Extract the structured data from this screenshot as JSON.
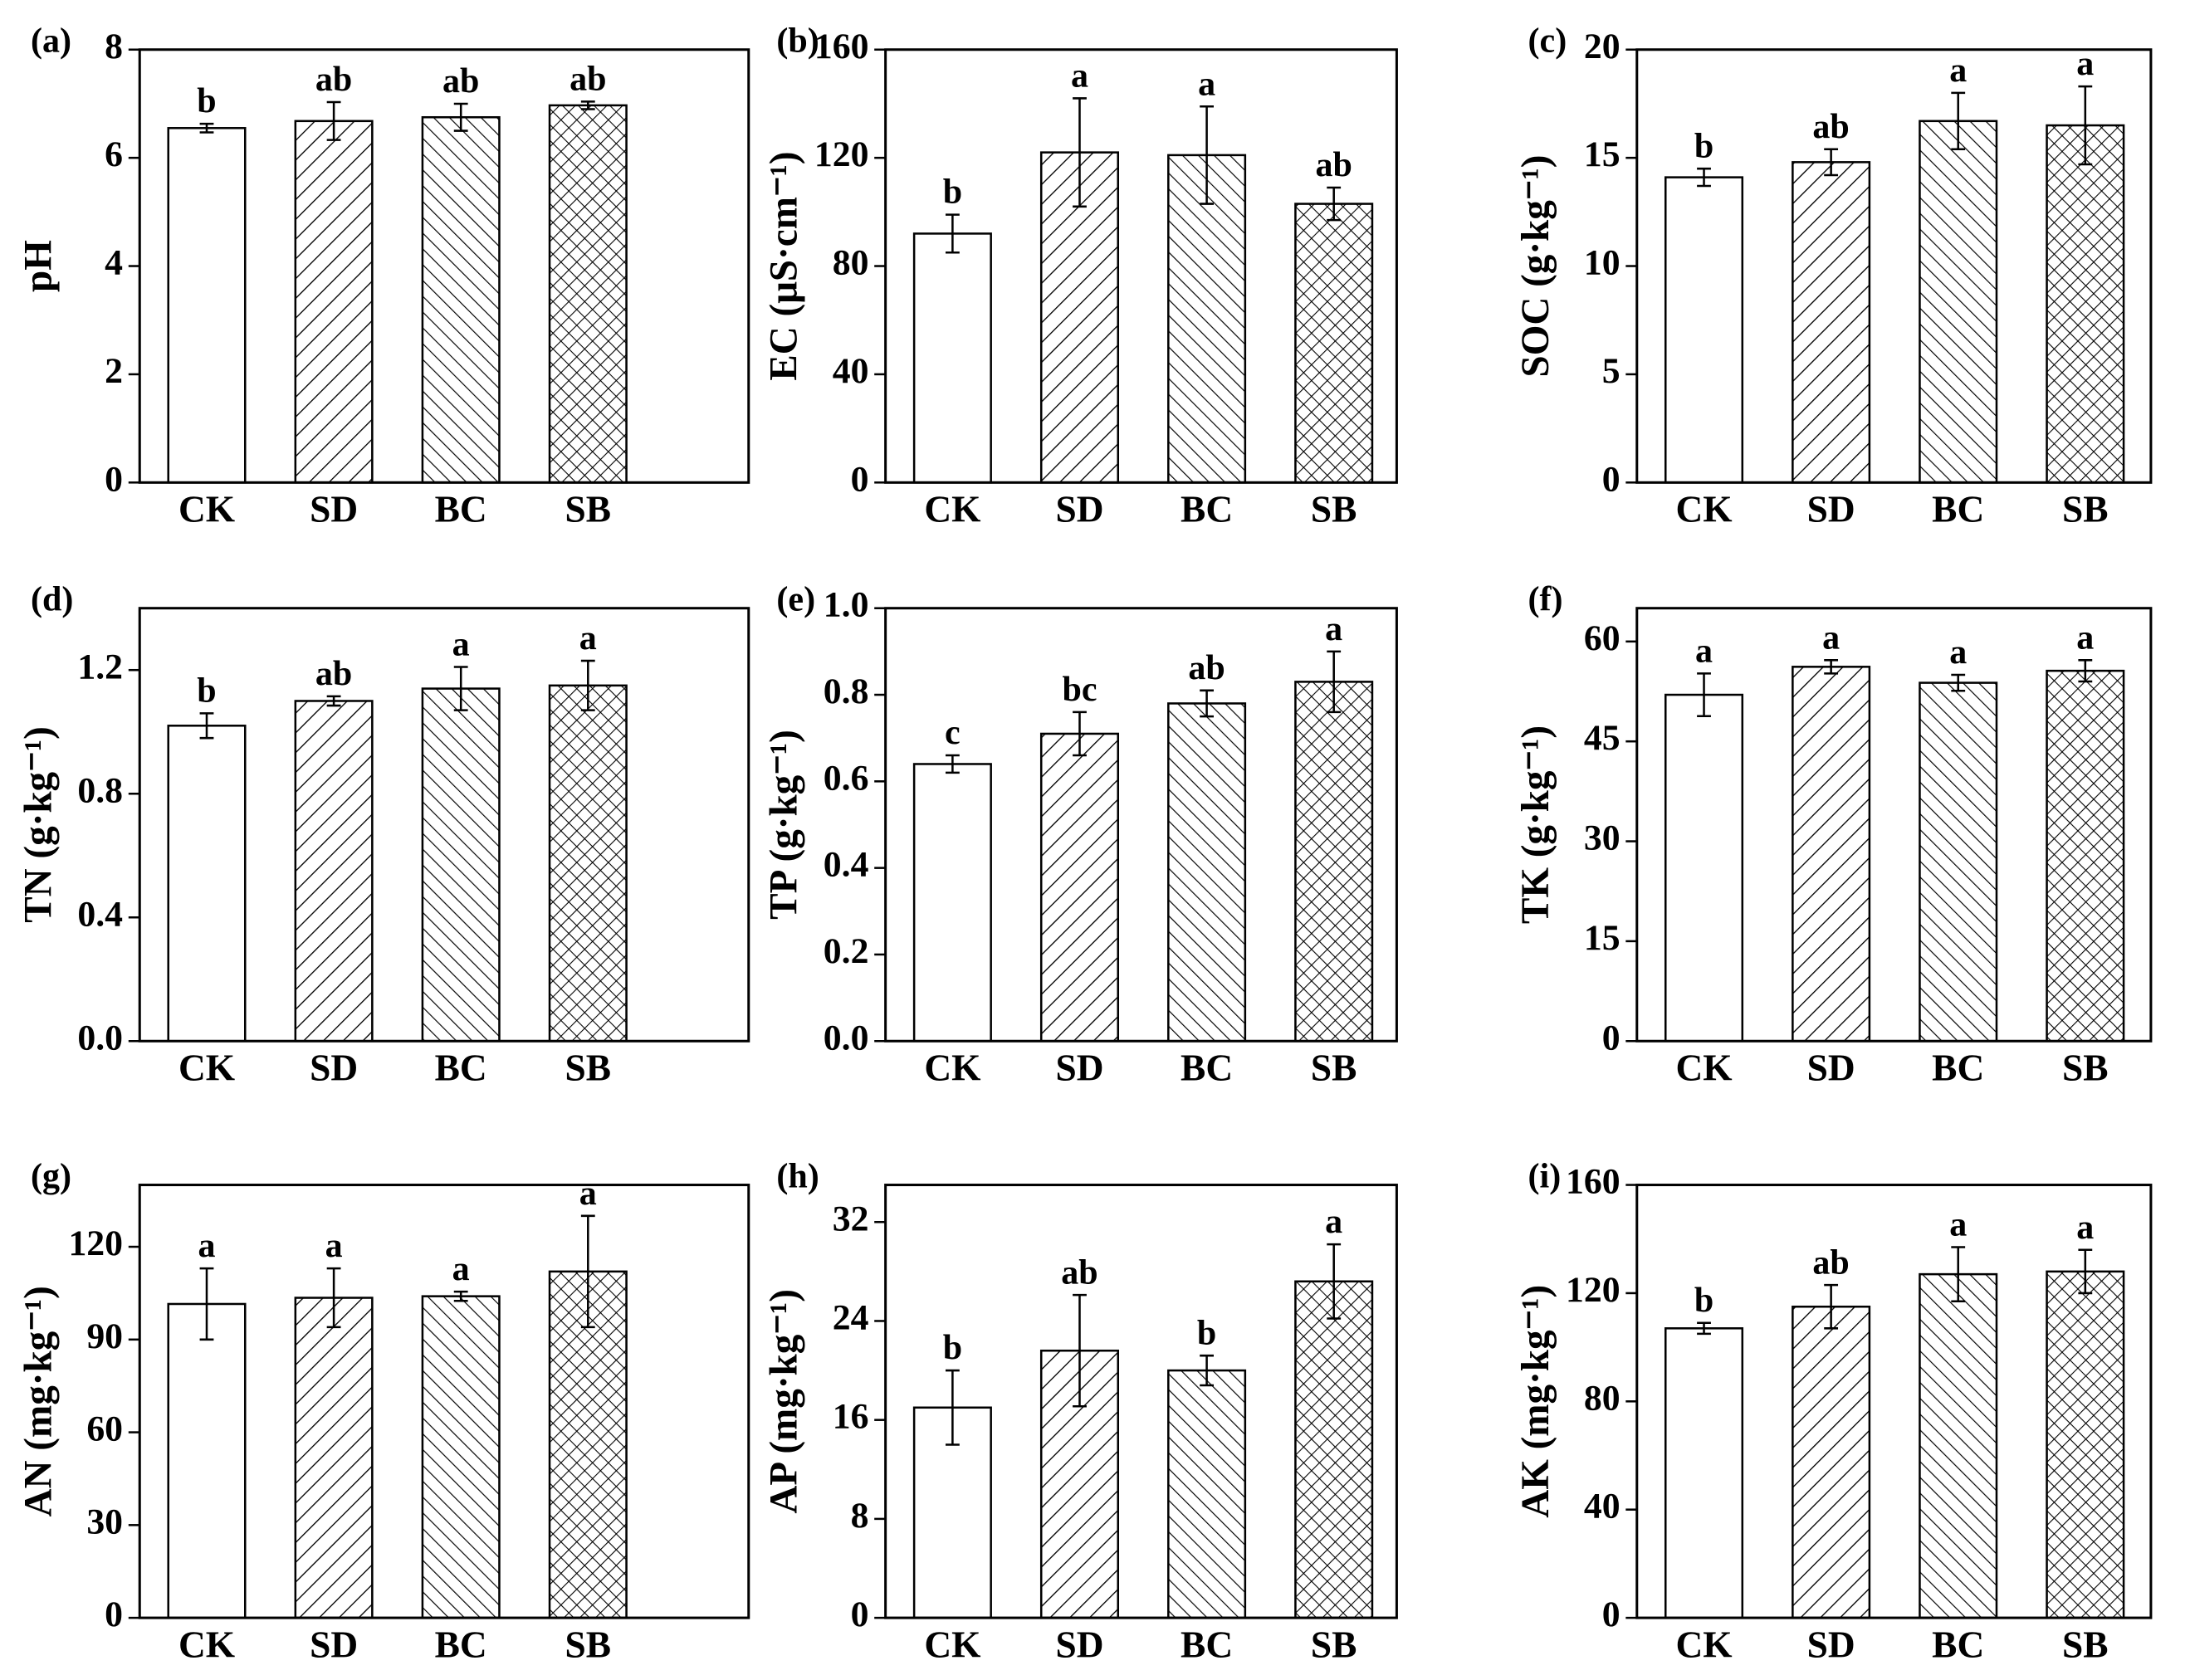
{
  "chart_data": [
    {
      "type": "bar",
      "panel_label": "(a)",
      "ylabel": "pH",
      "categories": [
        "CK",
        "SD",
        "BC",
        "SB"
      ],
      "values": [
        6.55,
        6.68,
        6.75,
        6.97
      ],
      "errors": [
        0.08,
        0.35,
        0.25,
        0.07
      ],
      "letters": [
        "b",
        "ab",
        "ab",
        "ab"
      ],
      "hatches": [
        "none",
        "/",
        "\\",
        "x"
      ],
      "color": "#000000",
      "ylim": [
        0,
        8
      ],
      "yticks": [
        0,
        2,
        4,
        6,
        8
      ]
    },
    {
      "type": "bar",
      "panel_label": "(b)",
      "ylabel": "EC (μS·cm⁻¹)",
      "categories": [
        "CK",
        "SD",
        "BC",
        "SB"
      ],
      "values": [
        92,
        122,
        121,
        103
      ],
      "errors": [
        7,
        20,
        18,
        6
      ],
      "letters": [
        "b",
        "a",
        "a",
        "ab"
      ],
      "hatches": [
        "none",
        "/",
        "\\",
        "x"
      ],
      "color": "#000000",
      "ylim": [
        0,
        160
      ],
      "yticks": [
        0,
        40,
        80,
        120,
        160
      ]
    },
    {
      "type": "bar",
      "panel_label": "(c)",
      "ylabel": "SOC (g·kg⁻¹)",
      "categories": [
        "CK",
        "SD",
        "BC",
        "SB"
      ],
      "values": [
        14.1,
        14.8,
        16.7,
        16.5
      ],
      "errors": [
        0.4,
        0.6,
        1.3,
        1.8
      ],
      "letters": [
        "b",
        "ab",
        "a",
        "a"
      ],
      "hatches": [
        "none",
        "/",
        "\\",
        "x"
      ],
      "color": "#000000",
      "ylim": [
        0,
        20
      ],
      "yticks": [
        0,
        5,
        10,
        15,
        20
      ]
    },
    {
      "type": "bar",
      "panel_label": "(d)",
      "ylabel": "TN (g·kg⁻¹)",
      "categories": [
        "CK",
        "SD",
        "BC",
        "SB"
      ],
      "values": [
        1.02,
        1.1,
        1.14,
        1.15
      ],
      "errors": [
        0.04,
        0.015,
        0.07,
        0.08
      ],
      "letters": [
        "b",
        "ab",
        "a",
        "a"
      ],
      "hatches": [
        "none",
        "/",
        "\\",
        "x"
      ],
      "color": "#000000",
      "ylim": [
        0,
        1.4
      ],
      "yticks": [
        {
          "value": 0,
          "label": "0.0"
        },
        0.4,
        0.8,
        1.2
      ]
    },
    {
      "type": "bar",
      "panel_label": "(e)",
      "ylabel": "TP (g·kg⁻¹)",
      "categories": [
        "CK",
        "SD",
        "BC",
        "SB"
      ],
      "values": [
        0.64,
        0.71,
        0.78,
        0.83
      ],
      "errors": [
        0.02,
        0.05,
        0.03,
        0.07
      ],
      "letters": [
        "c",
        "bc",
        "ab",
        "a"
      ],
      "hatches": [
        "none",
        "/",
        "\\",
        "x"
      ],
      "color": "#000000",
      "ylim": [
        0,
        1.0
      ],
      "yticks": [
        {
          "value": 0,
          "label": "0.0"
        },
        0.2,
        0.4,
        0.6,
        0.8,
        {
          "value": 1,
          "label": "1.0"
        }
      ]
    },
    {
      "type": "bar",
      "panel_label": "(f)",
      "ylabel": "TK (g·kg⁻¹)",
      "categories": [
        "CK",
        "SD",
        "BC",
        "SB"
      ],
      "values": [
        52,
        56.2,
        53.8,
        55.6
      ],
      "errors": [
        3.2,
        1.0,
        1.2,
        1.6
      ],
      "letters": [
        "a",
        "a",
        "a",
        "a"
      ],
      "hatches": [
        "none",
        "/",
        "\\",
        "x"
      ],
      "color": "#000000",
      "ylim": [
        0,
        65
      ],
      "yticks": [
        0,
        15,
        30,
        45,
        60
      ]
    },
    {
      "type": "bar",
      "panel_label": "(g)",
      "ylabel": "AN (mg·kg⁻¹)",
      "categories": [
        "CK",
        "SD",
        "BC",
        "SB"
      ],
      "values": [
        101.5,
        103.5,
        104,
        112
      ],
      "errors": [
        11.5,
        9.5,
        1.5,
        18
      ],
      "letters": [
        "a",
        "a",
        "a",
        "a"
      ],
      "hatches": [
        "none",
        "/",
        "\\",
        "x"
      ],
      "color": "#000000",
      "ylim": [
        0,
        140
      ],
      "yticks": [
        0,
        30,
        60,
        90,
        120
      ]
    },
    {
      "type": "bar",
      "panel_label": "(h)",
      "ylabel": "AP (mg·kg⁻¹)",
      "categories": [
        "CK",
        "SD",
        "BC",
        "SB"
      ],
      "values": [
        17,
        21.6,
        20,
        27.2
      ],
      "errors": [
        3,
        4.5,
        1.2,
        3
      ],
      "letters": [
        "b",
        "ab",
        "b",
        "a"
      ],
      "hatches": [
        "none",
        "/",
        "\\",
        "x"
      ],
      "color": "#000000",
      "ylim": [
        0,
        35
      ],
      "yticks": [
        0,
        8,
        16,
        24,
        32
      ]
    },
    {
      "type": "bar",
      "panel_label": "(i)",
      "ylabel": "AK (mg·kg⁻¹)",
      "categories": [
        "CK",
        "SD",
        "BC",
        "SB"
      ],
      "values": [
        107,
        115,
        127,
        128
      ],
      "errors": [
        2,
        8,
        10,
        8
      ],
      "letters": [
        "b",
        "ab",
        "a",
        "a"
      ],
      "hatches": [
        "none",
        "/",
        "\\",
        "x"
      ],
      "color": "#000000",
      "ylim": [
        0,
        160
      ],
      "yticks": [
        0,
        40,
        80,
        120,
        160
      ]
    }
  ]
}
